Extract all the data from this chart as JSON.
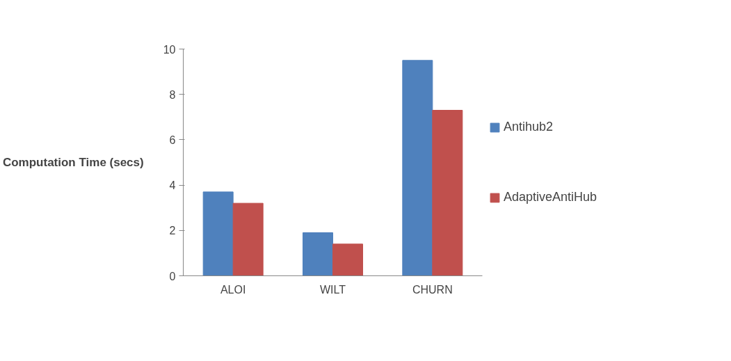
{
  "chart_data": {
    "type": "bar",
    "ylabel": "Computation Time (secs)",
    "categories": [
      "ALOI",
      "WILT",
      "CHURN"
    ],
    "series": [
      {
        "name": "Antihub2",
        "color": "#4f81bd",
        "values": [
          3.7,
          1.9,
          9.5
        ]
      },
      {
        "name": "AdaptiveAntiHub",
        "color": "#c0504d",
        "values": [
          3.2,
          1.4,
          7.3
        ]
      }
    ],
    "ylim": [
      0,
      10
    ],
    "yticks": [
      0,
      2,
      4,
      6,
      8,
      10
    ],
    "grid": false,
    "legend": "right"
  }
}
